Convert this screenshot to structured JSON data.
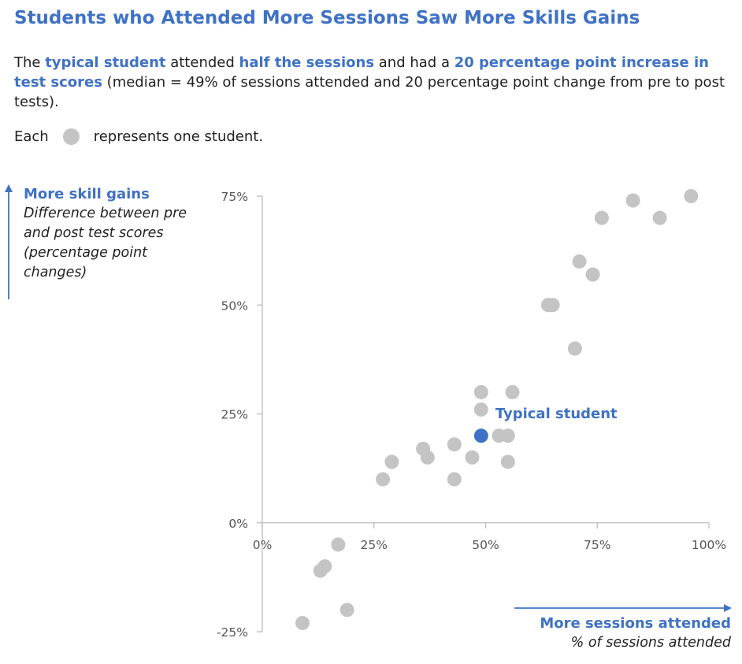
{
  "title": "Students who Attended More Sessions Saw More Skills Gains",
  "subtitle": {
    "p1": "The ",
    "h1": "typical student",
    "p2": " attended ",
    "h2": "half the sessions",
    "p3": " and had a ",
    "h3": "20 percentage point increase in test scores",
    "p4": " (median = 49% of sessions attended and 20 percentage point change from pre to post tests)."
  },
  "legend": {
    "before": "Each",
    "after": "represents one student."
  },
  "y_axis": {
    "title": "More skill gains",
    "subtitle": "Difference between pre and post test scores (percentage point changes)"
  },
  "x_axis": {
    "title": "More sessions attended",
    "subtitle": "% of sessions attended"
  },
  "colors": {
    "accent": "#3f72c4",
    "point": "#c4c4c4",
    "highlight": "#3f72c4",
    "axis": "#bbbbbb"
  },
  "chart_data": {
    "type": "scatter",
    "xlim": [
      0,
      100
    ],
    "ylim": [
      -25,
      75
    ],
    "x_ticks": [
      0,
      25,
      50,
      75,
      100
    ],
    "x_tick_labels": [
      "0%",
      "25%",
      "50%",
      "75%",
      "100%"
    ],
    "y_ticks": [
      -25,
      0,
      25,
      50,
      75
    ],
    "y_tick_labels": [
      "-25%",
      "0%",
      "25%",
      "50%",
      "75%"
    ],
    "grid": false,
    "points": [
      {
        "x": 9,
        "y": -23
      },
      {
        "x": 13,
        "y": -11
      },
      {
        "x": 14,
        "y": -10
      },
      {
        "x": 17,
        "y": -5
      },
      {
        "x": 19,
        "y": -20
      },
      {
        "x": 27,
        "y": 10
      },
      {
        "x": 29,
        "y": 14
      },
      {
        "x": 36,
        "y": 17
      },
      {
        "x": 37,
        "y": 15
      },
      {
        "x": 43,
        "y": 18
      },
      {
        "x": 43,
        "y": 10
      },
      {
        "x": 47,
        "y": 15
      },
      {
        "x": 49,
        "y": 30
      },
      {
        "x": 49,
        "y": 26
      },
      {
        "x": 53,
        "y": 20
      },
      {
        "x": 55,
        "y": 20
      },
      {
        "x": 55,
        "y": 14
      },
      {
        "x": 56,
        "y": 30
      },
      {
        "x": 64,
        "y": 50
      },
      {
        "x": 65,
        "y": 50
      },
      {
        "x": 70,
        "y": 40
      },
      {
        "x": 71,
        "y": 60
      },
      {
        "x": 74,
        "y": 57
      },
      {
        "x": 76,
        "y": 70
      },
      {
        "x": 83,
        "y": 74
      },
      {
        "x": 89,
        "y": 70
      },
      {
        "x": 96,
        "y": 75
      }
    ],
    "highlight": {
      "x": 49,
      "y": 20,
      "label": "Typical student"
    }
  }
}
